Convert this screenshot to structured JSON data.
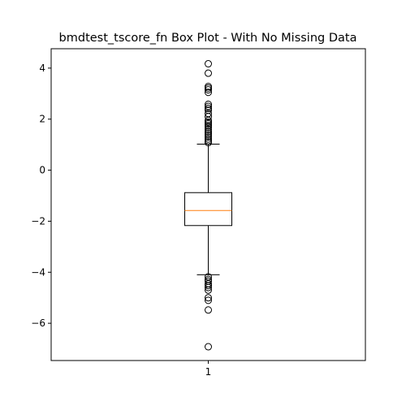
{
  "chart_data": {
    "type": "box",
    "title": "bmdtest_tscore_fn Box Plot - With No Missing Data",
    "xlabel": "",
    "ylabel": "",
    "categories": [
      "1"
    ],
    "ylim": [
      -7.46,
      4.76
    ],
    "yticks": [
      -6,
      -4,
      -2,
      0,
      2,
      4
    ],
    "ytick_labels": [
      "−6",
      "−4",
      "−2",
      "0",
      "2",
      "4"
    ],
    "grid": false,
    "box": {
      "whisker_low": -4.1,
      "q1": -2.17,
      "median": -1.58,
      "q3": -0.88,
      "whisker_high": 1.02
    },
    "outliers": [
      4.17,
      3.8,
      3.28,
      3.22,
      3.15,
      3.05,
      2.58,
      2.5,
      2.42,
      2.35,
      2.22,
      2.1,
      1.95,
      1.88,
      1.82,
      1.75,
      1.68,
      1.6,
      1.52,
      1.45,
      1.38,
      1.3,
      1.22,
      1.15,
      1.08,
      -4.18,
      -4.28,
      -4.35,
      -4.45,
      -4.52,
      -4.6,
      -4.7,
      -5.0,
      -5.1,
      -5.48,
      -6.92
    ],
    "colors": {
      "box": "#000000",
      "median": "#ff7f0e",
      "outlier": "#000000"
    }
  }
}
